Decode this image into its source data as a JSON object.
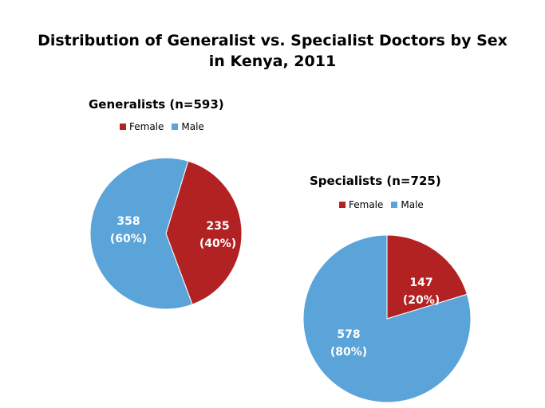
{
  "title_line1": "Distribution of Generalist vs. Specialist Doctors by Sex",
  "title_line2": "in Kenya, 2011",
  "colors": {
    "female": "#B22222",
    "male": "#5BA4D9"
  },
  "chart_data": [
    {
      "type": "pie",
      "title": "Generalists (n=593)",
      "legend": [
        "Female",
        "Male"
      ],
      "slices": [
        {
          "name": "Female",
          "value": 235,
          "label": "235",
          "pct_label": "(40%)"
        },
        {
          "name": "Male",
          "value": 358,
          "label": "358",
          "pct_label": "(60%)"
        }
      ]
    },
    {
      "type": "pie",
      "title": "Specialists (n=725)",
      "legend": [
        "Female",
        "Male"
      ],
      "slices": [
        {
          "name": "Female",
          "value": 147,
          "label": "147",
          "pct_label": "(20%)"
        },
        {
          "name": "Male",
          "value": 578,
          "label": "578",
          "pct_label": "(80%)"
        }
      ]
    }
  ]
}
